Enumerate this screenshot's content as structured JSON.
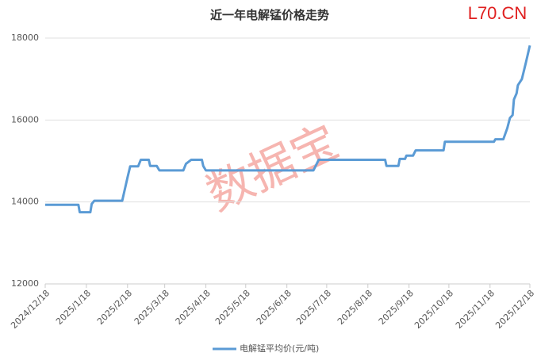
{
  "chart_data": {
    "type": "line",
    "title": "近一年电解锰价格走势",
    "brand": "L70.CN",
    "watermark": "数据宝",
    "series": [
      {
        "name": "电解锰平均价(元/吨)",
        "color": "#5b9bd5",
        "x": [
          "2024/12/18",
          "2025/1/12",
          "2025/1/13",
          "2025/1/21",
          "2025/1/22",
          "2025/1/24",
          "2025/2/14",
          "2025/2/18",
          "2025/2/20",
          "2025/2/26",
          "2025/2/28",
          "2025/3/6",
          "2025/3/7",
          "2025/3/12",
          "2025/3/14",
          "2025/4/1",
          "2025/4/3",
          "2025/4/7",
          "2025/4/15",
          "2025/4/16",
          "2025/4/18",
          "2025/7/8",
          "2025/7/12",
          "2025/8/31",
          "2025/9/1",
          "2025/9/10",
          "2025/9/11",
          "2025/9/15",
          "2025/9/16",
          "2025/9/21",
          "2025/9/23",
          "2025/10/14",
          "2025/10/15",
          "2025/11/21",
          "2025/11/22",
          "2025/11/28",
          "2025/12/1",
          "2025/12/3",
          "2025/12/5",
          "2025/12/6",
          "2025/12/8",
          "2025/12/9",
          "2025/12/12",
          "2025/12/15",
          "2025/12/18"
        ],
        "values": [
          13930,
          13930,
          13750,
          13750,
          13950,
          14030,
          14030,
          14600,
          14870,
          14870,
          15030,
          15030,
          14880,
          14880,
          14770,
          14770,
          14930,
          15030,
          15030,
          14880,
          14770,
          14770,
          15030,
          15030,
          14880,
          14880,
          15050,
          15050,
          15130,
          15130,
          15260,
          15260,
          15470,
          15470,
          15530,
          15530,
          15800,
          16050,
          16120,
          16500,
          16650,
          16850,
          17000,
          17400,
          17820
        ]
      }
    ],
    "xlim": [
      "2024/12/18",
      "2025/12/18"
    ],
    "xticks": [
      "2024/12/18",
      "2025/1/18",
      "2025/2/18",
      "2025/3/18",
      "2025/4/18",
      "2025/5/18",
      "2025/6/18",
      "2025/7/18",
      "2025/8/18",
      "2025/9/18",
      "2025/10/18",
      "2025/11/18",
      "2025/12/18"
    ],
    "ylim": [
      12000,
      18000
    ],
    "yticks": [
      12000,
      14000,
      16000,
      18000
    ],
    "grid": true,
    "legend": "bottom"
  }
}
